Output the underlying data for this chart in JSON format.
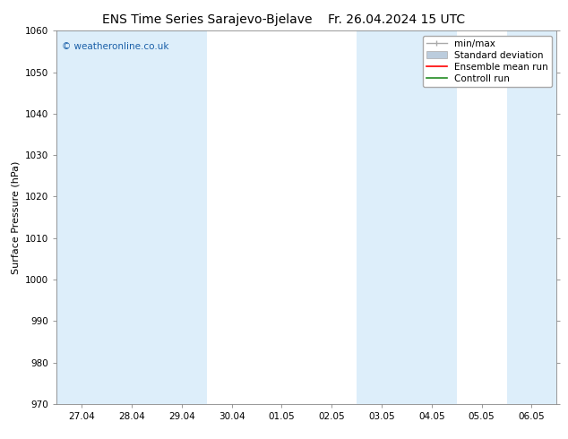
{
  "title_left": "ENS Time Series Sarajevo-Bjelave",
  "title_right": "Fr. 26.04.2024 15 UTC",
  "ylabel": "Surface Pressure (hPa)",
  "ylim": [
    970,
    1060
  ],
  "yticks": [
    970,
    980,
    990,
    1000,
    1010,
    1020,
    1030,
    1040,
    1050,
    1060
  ],
  "xtick_labels": [
    "27.04",
    "28.04",
    "29.04",
    "30.04",
    "01.05",
    "02.05",
    "03.05",
    "04.05",
    "05.05",
    "06.05"
  ],
  "background_color": "#ffffff",
  "plot_bg_color": "#ffffff",
  "shaded_band_color": "#ddeefa",
  "shaded_columns": [
    0,
    1,
    2,
    6,
    7,
    9
  ],
  "watermark": "© weatheronline.co.uk",
  "watermark_color": "#1a5fa8",
  "legend_entries": [
    "min/max",
    "Standard deviation",
    "Ensemble mean run",
    "Controll run"
  ],
  "legend_line_colors": [
    "#aaaaaa",
    "#bbccdd",
    "#ff0000",
    "#008000"
  ],
  "title_fontsize": 10,
  "label_fontsize": 8,
  "tick_fontsize": 7.5,
  "legend_fontsize": 7.5,
  "watermark_fontsize": 7.5,
  "fig_width": 6.34,
  "fig_height": 4.9,
  "dpi": 100
}
